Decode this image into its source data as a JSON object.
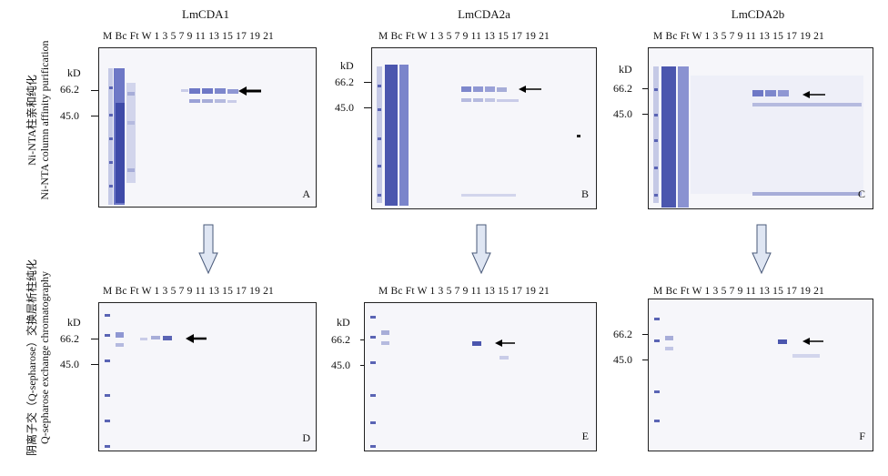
{
  "row_labels": {
    "top": [
      "Ni-NTA柱亲和纯化",
      "Ni-NTA column affinity purification"
    ],
    "bottom": [
      "阴离子交（Q-sepharose）交换层析柱纯化",
      "Q-sepharose exchange chromatography"
    ]
  },
  "columns": [
    "LmCDA1",
    "LmCDA2a",
    "LmCDA2b"
  ],
  "lane_labels": "M Bc  Ft  W  1   3   5   7   9   11  13  15  17  19  21",
  "kd_label": "kD",
  "mw_markers": [
    "66.2",
    "45.0"
  ],
  "panels": [
    "A",
    "B",
    "C",
    "D",
    "E",
    "F"
  ]
}
